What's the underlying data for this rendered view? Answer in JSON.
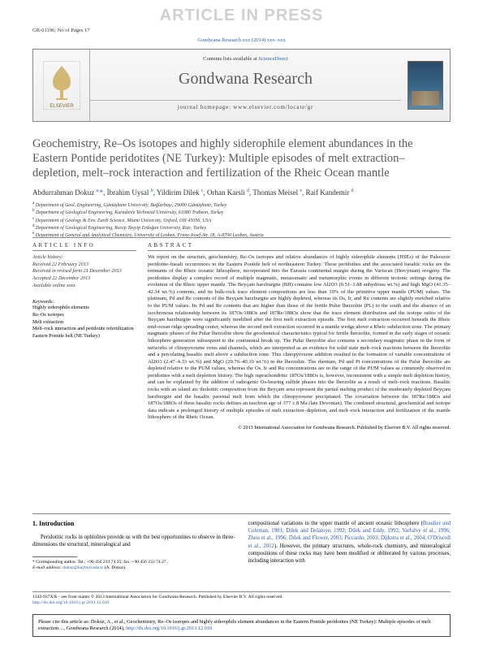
{
  "watermark": "ARTICLE IN PRESS",
  "header_meta": "GR-01196; No of Pages 17",
  "journal_ref_link": "Gondwana Research xxx (2014) xxx–xxx",
  "masthead": {
    "contents_prefix": "Contents lists available at ",
    "contents_link": "ScienceDirect",
    "journal_name": "Gondwana Research",
    "homepage": "journal homepage: www.elsevier.com/locate/gr",
    "publisher": "ELSEVIER"
  },
  "title": "Geochemistry, Re–Os isotopes and highly siderophile element abundances in the Eastern Pontide peridotites (NE Turkey): Multiple episodes of melt extraction–depletion, melt–rock interaction and fertilization of the Rheic Ocean mantle",
  "authors_html": "Abdurrahman Dokuz <sup>a,</sup><span class='corr'>*</span>, İbrahim Uysal <sup>b</sup>, Yildirim Dilek <sup>c</sup>, Orhan Karsli <sup>d</sup>, Thomas Meisel <sup>e</sup>, Raif Kandemir <sup>d</sup>",
  "affiliations": [
    "a Department of Geol. Engineering, Gümüşhane University, Bağlarbaşı, 29000 Gümüşhane, Turkey",
    "b Department of Geological Engineering, Karadeniz Technical University, 61080 Trabzon, Turkey",
    "c Department of Geology & Env. Earth Science, Miami University, Oxford, OH 45056, USA",
    "d Department of Geological Engineering, Recep Tayyip Erdoğan University, Rize, Turkey",
    "e Department of General and Analytical Chemistry, University of Leoben, Franz-Josef-Str. 18, A-8700 Leoben, Austria"
  ],
  "info": {
    "heading": "ARTICLE INFO",
    "history_label": "Article history:",
    "history": [
      "Received 22 February 2013",
      "Received in revised form 21 December 2013",
      "Accepted 22 December 2013",
      "Available online xxxx"
    ],
    "keywords_label": "Keywords:",
    "keywords": [
      "Highly siderophile elements",
      "Re–Os isotopes",
      "Melt extraction",
      "Melt–rock interaction and peridotite refertilization",
      "Eastern Pontide belt (NE Turkey)"
    ]
  },
  "abstract": {
    "heading": "ABSTRACT",
    "text": "We report on the structure, geochemistry, Re–Os isotopes and relative abundances of highly siderophile elements (HSEs) of the Paleozoic peridotite–basalt occurrences in the Eastern Pontide belt of northeastern Turkey. These peridotites and the associated basaltic rocks are the remnants of the Rheic oceanic lithosphere, incorporated into the Eurasia continental margin during the Variscan (Hercynian) orogeny. The peridotites display a complex record of multiple magmatic, metasomatic and metamorphic events in different tectonic settings during the evolution of the Rheic upper mantle. The Beyçam harzburgite (BH) contains low Al2O3 (0.51–1.88 anhydrous wt.%) and high MgO (41.35–42.34 wt.%) contents, and its bulk-rock trace element compositions are less than 10% of the primitive upper mantle (PUM) values. The platinum, Pd and Re contents of the Beyçam harzburgite are highly depleted, whereas its Os, Ir, and Ru contents are slightly enriched relative to the PUM values. Its Pd and Re contents that are higher than those of the fertile Pulur lherzolite (PL) to the south and the absence of an isochronous relationship between its 187Os/188Os and 187Re/188Os show that the trace element distribution and the isotope ratios of the Beyçam harzburgite were significantly modified after the first melt extraction episode. The first melt extraction occurred beneath the Rheic mid-ocean ridge spreading center, whereas the second melt extraction occurred in a mantle wedge above a Rheic subduction zone. The primary magmatic phases of the Pulur lherzolite show the geochemical characteristics typical for fertile lherzolite, formed in the early stages of oceanic lithosphere generation subsequent to the continental break up. The Pulur lherzolite also contains a secondary magmatic phase in the form of networks of clinopyroxene veins and channels, which are interpreted as an evidence for solid state melt–rock reactions between the lherzolite and a percolating basaltic melt above a subduction zone. This clinopyroxene addition resulted in the formation of variable concentrations of Al2O3 (2.47–4.33 wt.%) and MgO (29.76–40.10 wt.%) in the lherzolite. The rhenium, Pd and Pt concentrations of the Pulur lherzolite are depleted relative to the PUM values, whereas the Os, Ir and Ru concentrations are in the range of the PUM values as commonly observed in peridotites with a melt depletion history. The high suprachondritic 187Os/188Os is, however, inconsistent with a simple melt depletion history, and can be explained by the addition of radiogenic Os-bearing sulfide phases into the lherzolite as a result of melt–rock reactions. Basaltic rocks with an island arc tholeiitic composition from the Beyçam area represent the partial melting product of the moderately depleted Beyçam harzburgite and the basaltic parental melt from which the clinopyroxene precipitated. The covariation between the 187Re/188Os and 187Os/188Os of these basaltic rocks defines an isochron age of 377 ± 8 Ma (late Devonian). The combined structural, geochemical and isotope data indicate a prolonged history of multiple episodes of melt extraction–depletion, and melt–rock interaction and fertilization of the mantle lithosphere of the Rheic Ocean.",
    "copyright": "© 2013 International Association for Gondwana Research. Published by Elsevier B.V. All rights reserved."
  },
  "body": {
    "intro_heading": "1. Introduction",
    "intro_left": "Peridotitic rocks in ophiolites provide us with the best opportunities to observe in three-dimensions the structural, mineralogical and",
    "intro_right": "compositional variations in the upper mantle of ancient oceanic lithosphere (Boudier and Coleman, 1981; Dilek and Delaloye, 1992; Dilek and Eddy, 1992; Varfalvy et al., 1996; Zhou et al., 1996; Dilek and Flower, 2003; Piccardo, 2003; Dijkstra et al., 2004; O'Driscoll et al., 2012). However, the primary structures, whole-rock chemistry, and mineralogical compositions of these rocks may have been modified or obliterated by various processes, including interaction with",
    "corresponding": "* Corresponding author. Tel.: +90 456 233 74 25; fax: +90 456 233 74 27.",
    "email_line": "E-mail address: dokuz@bayburt.edu.tr (A. Dokuz)."
  },
  "footer": {
    "issn_line": "1342-937X/$ – see front matter © 2013 International Association for Gondwana Research. Published by Elsevier B.V. All rights reserved.",
    "doi_line": "http://dx.doi.org/10.1016/j.gr.2013.12.010"
  },
  "citebox": "Please cite this article as: Dokuz, A., et al., Geochemistry, Re–Os isotopes and highly siderophile element abundances in the Eastern Pontide peridotites (NE Turkey): Multiple episodes of melt extraction…, Gondwana Research (2014), http://dx.doi.org/10.1016/j.gr.2013.12.010",
  "colors": {
    "link": "#2a5db0",
    "heading_gray": "#5a5a5a",
    "rule": "#888888"
  }
}
